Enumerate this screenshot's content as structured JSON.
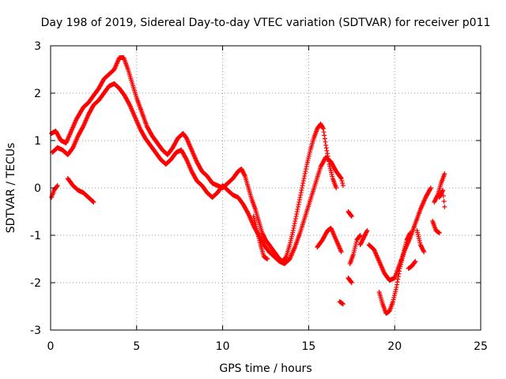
{
  "chart_data": {
    "type": "scatter",
    "title": "Day 198 of 2019, Sidereal Day-to-day VTEC variation (SDTVAR) for receiver p011",
    "xlabel": "GPS time / hours",
    "ylabel": "SDTVAR / TECUs",
    "xlim": [
      0,
      25
    ],
    "ylim": [
      -3,
      3
    ],
    "xticks": [
      0,
      5,
      10,
      15,
      20,
      25
    ],
    "yticks": [
      -3,
      -2,
      -1,
      0,
      1,
      2,
      3
    ],
    "grid": true,
    "marker": "+",
    "series": [
      {
        "name": "SDTVAR",
        "color": "#ff0000",
        "segments": [
          [
            [
              0.05,
              1.15
            ],
            [
              0.3,
              1.2
            ],
            [
              0.6,
              1.0
            ],
            [
              0.9,
              0.95
            ],
            [
              1.2,
              1.2
            ],
            [
              1.5,
              1.45
            ],
            [
              1.9,
              1.7
            ],
            [
              2.2,
              1.8
            ],
            [
              2.5,
              1.95
            ],
            [
              2.8,
              2.1
            ],
            [
              3.1,
              2.3
            ],
            [
              3.4,
              2.4
            ],
            [
              3.7,
              2.5
            ],
            [
              4.0,
              2.75
            ],
            [
              4.25,
              2.75
            ],
            [
              4.5,
              2.5
            ],
            [
              4.75,
              2.2
            ],
            [
              5.0,
              1.9
            ],
            [
              5.3,
              1.6
            ],
            [
              5.6,
              1.3
            ],
            [
              5.9,
              1.1
            ],
            [
              6.2,
              0.95
            ],
            [
              6.5,
              0.8
            ],
            [
              6.8,
              0.7
            ],
            [
              7.1,
              0.85
            ],
            [
              7.4,
              1.05
            ],
            [
              7.7,
              1.15
            ],
            [
              7.9,
              1.05
            ],
            [
              8.2,
              0.8
            ],
            [
              8.5,
              0.55
            ],
            [
              8.8,
              0.35
            ],
            [
              9.1,
              0.25
            ],
            [
              9.4,
              0.1
            ],
            [
              9.7,
              0.05
            ],
            [
              10.0,
              0.0
            ],
            [
              10.3,
              0.1
            ],
            [
              10.6,
              0.2
            ],
            [
              10.9,
              0.35
            ],
            [
              11.1,
              0.4
            ],
            [
              11.3,
              0.25
            ],
            [
              11.5,
              0.0
            ],
            [
              11.7,
              -0.25
            ],
            [
              11.9,
              -0.45
            ],
            [
              12.1,
              -0.7
            ],
            [
              12.3,
              -0.95
            ],
            [
              12.5,
              -1.1
            ],
            [
              12.7,
              -1.2
            ],
            [
              12.9,
              -1.3
            ],
            [
              13.1,
              -1.4
            ],
            [
              13.3,
              -1.5
            ],
            [
              13.5,
              -1.55
            ],
            [
              13.7,
              -1.45
            ],
            [
              13.9,
              -1.2
            ],
            [
              14.1,
              -0.9
            ],
            [
              14.3,
              -0.55
            ],
            [
              14.5,
              -0.2
            ],
            [
              14.7,
              0.15
            ],
            [
              14.9,
              0.5
            ],
            [
              15.1,
              0.8
            ],
            [
              15.3,
              1.05
            ],
            [
              15.5,
              1.25
            ],
            [
              15.7,
              1.35
            ],
            [
              15.85,
              1.25
            ],
            [
              16.0,
              0.9
            ],
            [
              16.2,
              0.5
            ],
            [
              16.4,
              0.2
            ],
            [
              16.6,
              0.0
            ]
          ],
          [
            [
              0.1,
              0.75
            ],
            [
              0.4,
              0.85
            ],
            [
              0.7,
              0.8
            ],
            [
              1.0,
              0.7
            ],
            [
              1.3,
              0.85
            ],
            [
              1.6,
              1.1
            ],
            [
              1.9,
              1.3
            ],
            [
              2.2,
              1.55
            ],
            [
              2.5,
              1.75
            ],
            [
              2.8,
              1.85
            ],
            [
              3.1,
              2.0
            ],
            [
              3.4,
              2.15
            ],
            [
              3.7,
              2.2
            ],
            [
              4.0,
              2.1
            ],
            [
              4.3,
              1.95
            ],
            [
              4.6,
              1.75
            ],
            [
              4.9,
              1.5
            ],
            [
              5.2,
              1.25
            ],
            [
              5.5,
              1.05
            ],
            [
              5.8,
              0.9
            ],
            [
              6.1,
              0.75
            ],
            [
              6.4,
              0.6
            ],
            [
              6.7,
              0.5
            ],
            [
              7.0,
              0.6
            ],
            [
              7.3,
              0.75
            ],
            [
              7.6,
              0.8
            ],
            [
              7.9,
              0.6
            ],
            [
              8.2,
              0.35
            ],
            [
              8.5,
              0.15
            ],
            [
              8.8,
              0.05
            ],
            [
              9.1,
              -0.1
            ],
            [
              9.4,
              -0.2
            ],
            [
              9.7,
              -0.1
            ],
            [
              10.0,
              0.05
            ],
            [
              10.3,
              -0.05
            ],
            [
              10.6,
              -0.15
            ],
            [
              10.9,
              -0.2
            ],
            [
              11.2,
              -0.35
            ],
            [
              11.5,
              -0.55
            ],
            [
              11.8,
              -0.8
            ],
            [
              12.1,
              -1.0
            ],
            [
              12.4,
              -1.2
            ],
            [
              12.7,
              -1.35
            ],
            [
              13.0,
              -1.45
            ],
            [
              13.3,
              -1.55
            ],
            [
              13.6,
              -1.6
            ],
            [
              13.9,
              -1.5
            ],
            [
              14.2,
              -1.25
            ],
            [
              14.5,
              -0.95
            ],
            [
              14.8,
              -0.6
            ],
            [
              15.1,
              -0.25
            ],
            [
              15.4,
              0.1
            ],
            [
              15.7,
              0.45
            ],
            [
              16.0,
              0.65
            ],
            [
              16.3,
              0.55
            ],
            [
              16.6,
              0.35
            ],
            [
              16.9,
              0.2
            ],
            [
              17.0,
              0.05
            ]
          ],
          [
            [
              0.05,
              -0.2
            ],
            [
              0.2,
              -0.05
            ],
            [
              0.4,
              0.05
            ]
          ],
          [
            [
              1.0,
              0.2
            ],
            [
              1.3,
              0.05
            ],
            [
              1.6,
              -0.05
            ],
            [
              1.9,
              -0.1
            ],
            [
              2.2,
              -0.2
            ],
            [
              2.5,
              -0.3
            ]
          ],
          [
            [
              11.8,
              -0.6
            ],
            [
              12.0,
              -0.9
            ],
            [
              12.2,
              -1.2
            ],
            [
              12.4,
              -1.45
            ],
            [
              12.6,
              -1.5
            ]
          ],
          [
            [
              15.5,
              -1.25
            ],
            [
              15.8,
              -1.1
            ],
            [
              16.1,
              -0.9
            ],
            [
              16.3,
              -0.85
            ],
            [
              16.6,
              -1.1
            ],
            [
              16.9,
              -1.35
            ]
          ],
          [
            [
              16.8,
              -2.4
            ],
            [
              17.0,
              -2.45
            ]
          ],
          [
            [
              17.4,
              -1.6
            ],
            [
              17.6,
              -1.4
            ],
            [
              17.8,
              -1.1
            ],
            [
              18.0,
              -1.0
            ]
          ],
          [
            [
              17.3,
              -0.5
            ],
            [
              17.5,
              -0.6
            ]
          ],
          [
            [
              17.3,
              -1.9
            ],
            [
              17.5,
              -2.0
            ]
          ],
          [
            [
              18.0,
              -1.2
            ],
            [
              18.2,
              -1.05
            ],
            [
              18.4,
              -0.9
            ]
          ],
          [
            [
              18.5,
              -1.2
            ],
            [
              18.8,
              -1.3
            ],
            [
              19.1,
              -1.55
            ],
            [
              19.4,
              -1.8
            ],
            [
              19.7,
              -1.95
            ],
            [
              20.0,
              -1.9
            ],
            [
              20.3,
              -1.6
            ],
            [
              20.6,
              -1.3
            ],
            [
              20.9,
              -1.05
            ],
            [
              21.2,
              -0.75
            ],
            [
              21.5,
              -0.45
            ],
            [
              21.8,
              -0.2
            ],
            [
              22.1,
              0.0
            ]
          ],
          [
            [
              19.1,
              -2.2
            ],
            [
              19.3,
              -2.45
            ],
            [
              19.5,
              -2.65
            ],
            [
              19.7,
              -2.6
            ],
            [
              19.9,
              -2.4
            ],
            [
              20.1,
              -2.1
            ],
            [
              20.3,
              -1.7
            ],
            [
              20.5,
              -1.4
            ],
            [
              20.7,
              -1.1
            ],
            [
              20.9,
              -0.95
            ]
          ],
          [
            [
              20.8,
              -1.7
            ],
            [
              21.0,
              -1.65
            ],
            [
              21.2,
              -1.55
            ]
          ],
          [
            [
              21.3,
              -0.9
            ],
            [
              21.5,
              -1.2
            ],
            [
              21.7,
              -1.35
            ]
          ],
          [
            [
              22.2,
              -0.7
            ],
            [
              22.4,
              -0.9
            ],
            [
              22.6,
              -0.95
            ]
          ],
          [
            [
              22.3,
              -0.3
            ],
            [
              22.5,
              -0.15
            ],
            [
              22.7,
              0.1
            ],
            [
              22.9,
              0.3
            ]
          ],
          [
            [
              22.6,
              -0.2
            ],
            [
              22.8,
              -0.05
            ],
            [
              22.9,
              -0.4
            ]
          ]
        ]
      }
    ]
  }
}
